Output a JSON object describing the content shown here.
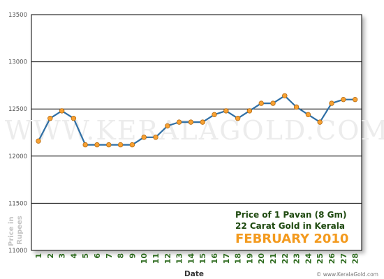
{
  "chart_data": {
    "type": "line",
    "x": [
      1,
      2,
      3,
      4,
      5,
      6,
      7,
      8,
      9,
      10,
      11,
      12,
      13,
      14,
      15,
      16,
      17,
      18,
      19,
      20,
      21,
      22,
      23,
      24,
      25,
      26,
      27,
      28
    ],
    "values": [
      12160,
      12400,
      12480,
      12400,
      12120,
      12120,
      12120,
      12120,
      12120,
      12200,
      12200,
      12320,
      12360,
      12360,
      12360,
      12440,
      12480,
      12400,
      12480,
      12560,
      12560,
      12640,
      12520,
      12440,
      12360,
      12560,
      12600,
      12600
    ],
    "xlabel": "Date",
    "ylabel": "Price in Rupees",
    "ylim": [
      11000,
      13500
    ],
    "yticks": [
      11000,
      11500,
      12000,
      12500,
      13000,
      13500
    ],
    "grid": true,
    "colors": {
      "line": "#2f6fa5",
      "marker": "#f7a133",
      "marker_edge": "#b56a10",
      "annotation_dark": "#1f4a10",
      "annotation_accent": "#f39a1e"
    },
    "annotation": {
      "line1": "Price of 1 Pavan (8 Gm)",
      "line2": "22 Carat Gold in Kerala",
      "line3": "FEBRUARY 2010"
    },
    "watermark": "WWW.KERALAGOLD.COM",
    "footer": "© www.KeralaGold.com"
  }
}
